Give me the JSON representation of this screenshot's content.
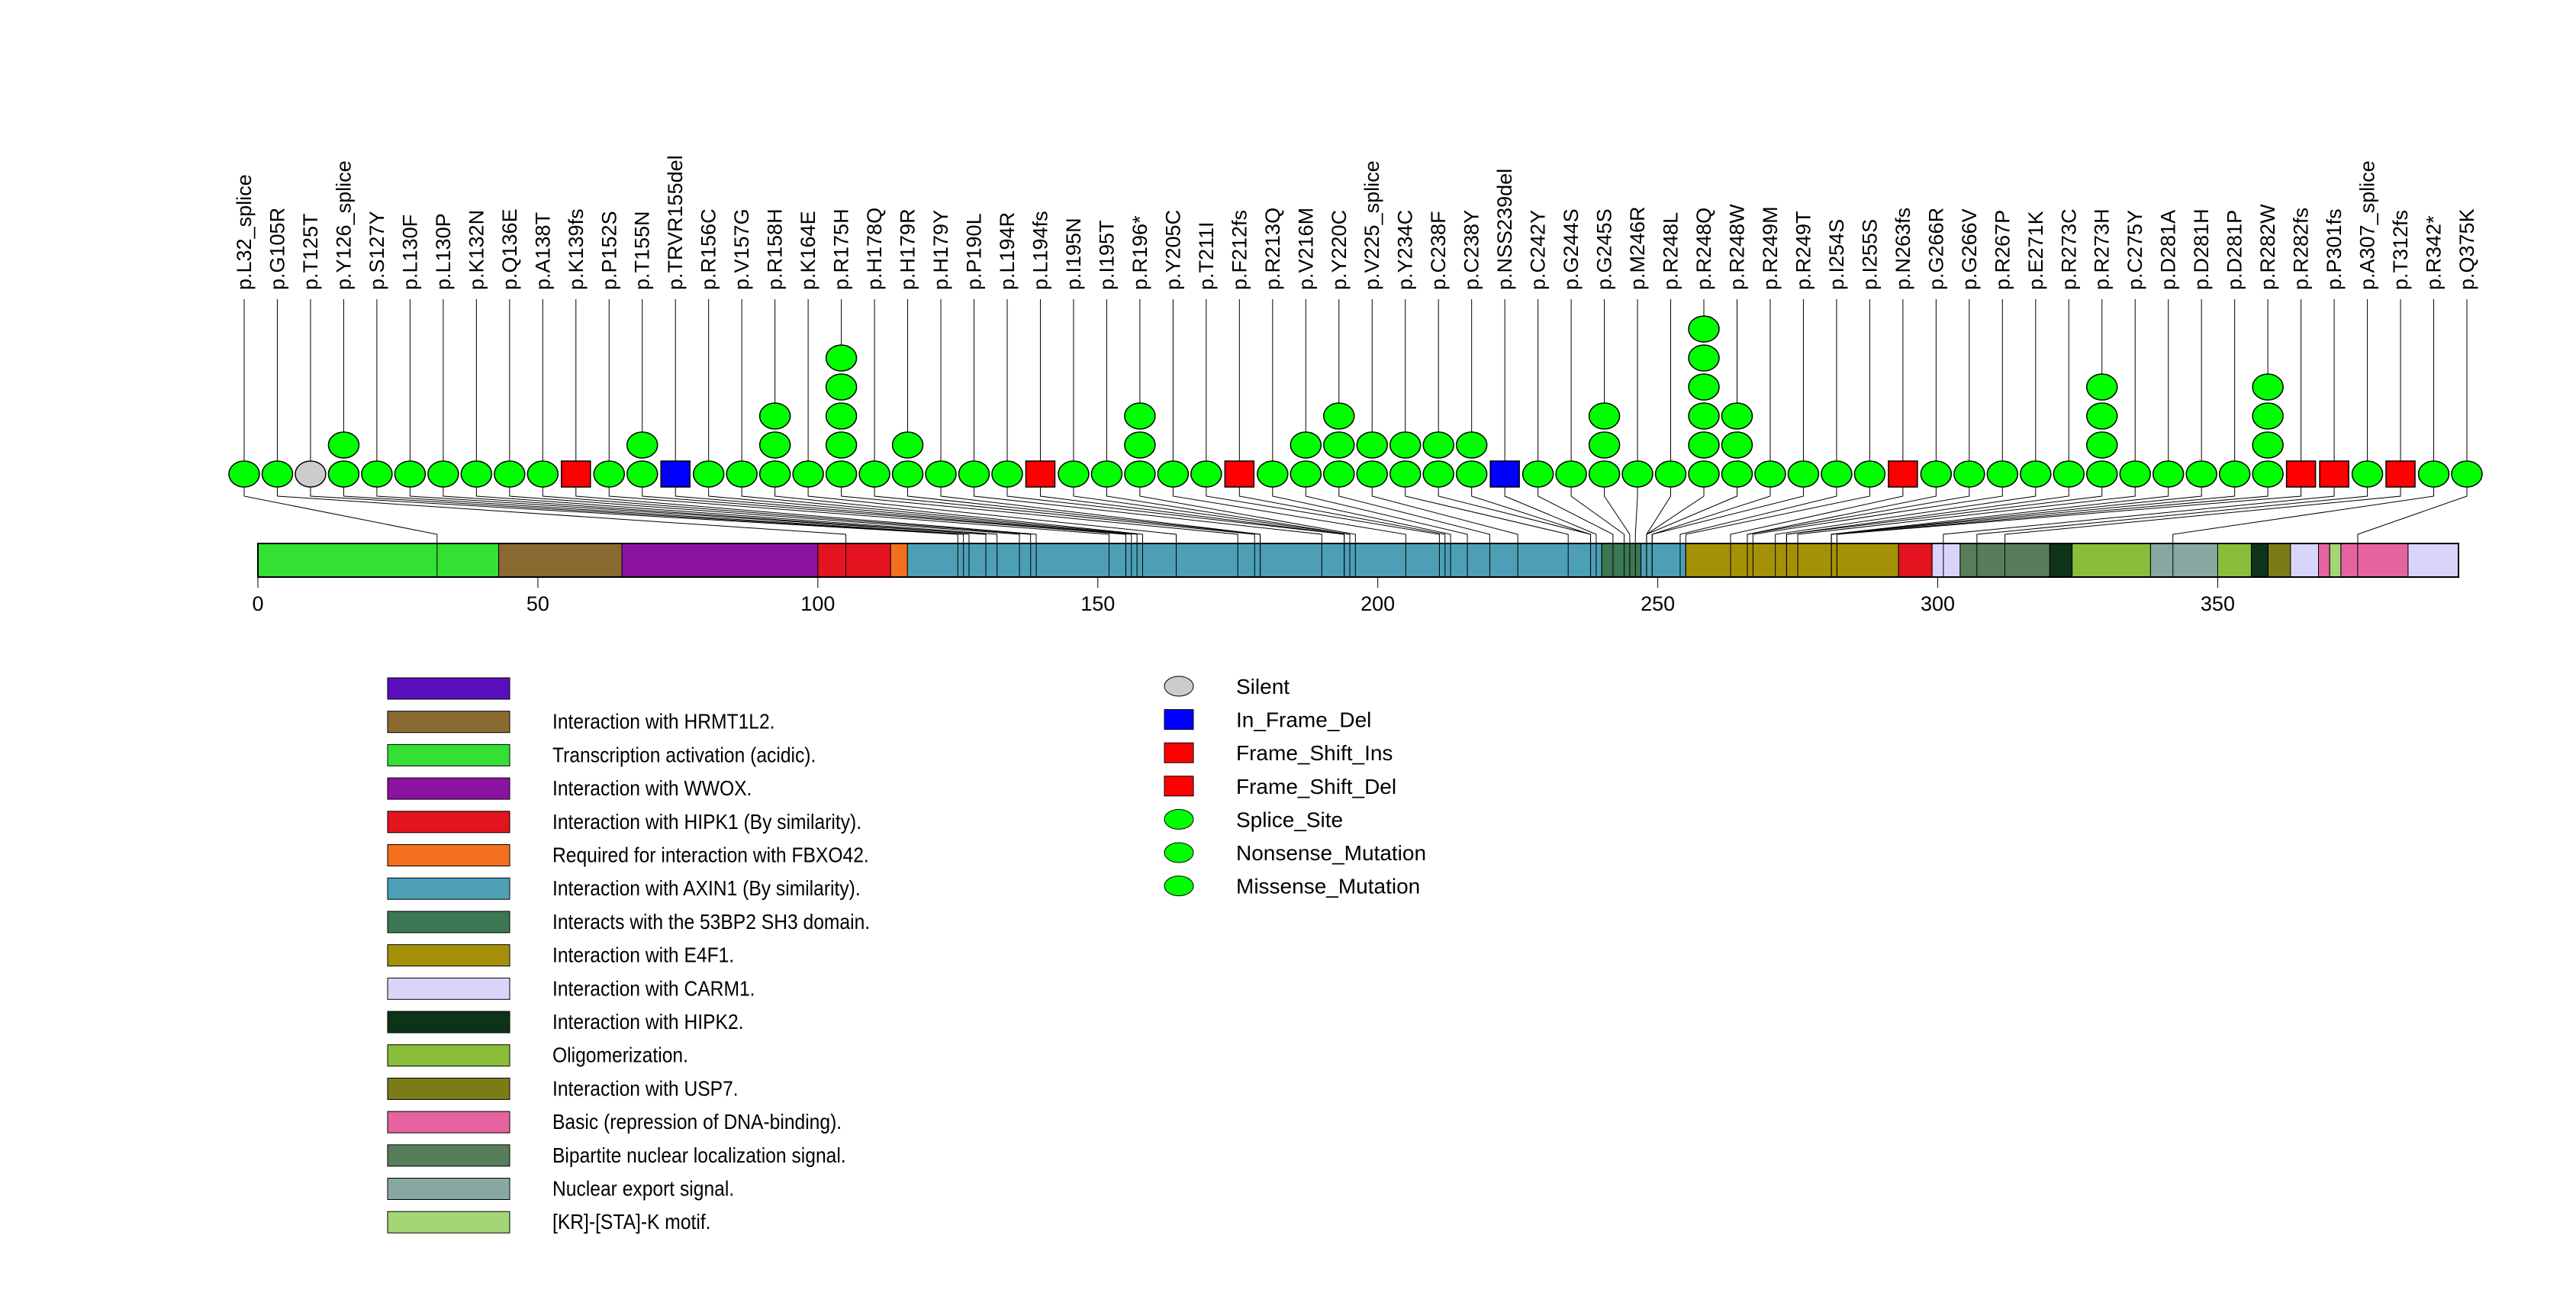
{
  "chart_data": {
    "type": "lollipop",
    "title": "",
    "xlabel": "",
    "ylabel": "",
    "protein_length": 393,
    "xlim": [
      0,
      393
    ],
    "x_ticks": [
      0,
      50,
      100,
      150,
      200,
      250,
      300,
      350
    ],
    "mutation_types": {
      "Silent": {
        "shape": "ellipse",
        "color": "#cccccc"
      },
      "In_Frame_Del": {
        "shape": "square",
        "color": "#0000ff"
      },
      "Frame_Shift_Ins": {
        "shape": "square",
        "color": "#ff0000"
      },
      "Frame_Shift_Del": {
        "shape": "square",
        "color": "#ff0000"
      },
      "Splice_Site": {
        "shape": "ellipse",
        "color": "#00ff00"
      },
      "Nonsense_Mutation": {
        "shape": "ellipse",
        "color": "#00ff00"
      },
      "Missense_Mutation": {
        "shape": "ellipse",
        "color": "#00ff00"
      }
    },
    "mutations": [
      {
        "label": "p.L32_splice",
        "pos": 32,
        "count": 1,
        "type": "Splice_Site"
      },
      {
        "label": "p.G105R",
        "pos": 105,
        "count": 1,
        "type": "Missense_Mutation"
      },
      {
        "label": "p.T125T",
        "pos": 125,
        "count": 1,
        "type": "Silent"
      },
      {
        "label": "p.Y126_splice",
        "pos": 126,
        "count": 2,
        "type": "Splice_Site"
      },
      {
        "label": "p.S127Y",
        "pos": 127,
        "count": 1,
        "type": "Missense_Mutation"
      },
      {
        "label": "p.L130F",
        "pos": 130,
        "count": 1,
        "type": "Missense_Mutation"
      },
      {
        "label": "p.L130P",
        "pos": 130,
        "count": 1,
        "type": "Missense_Mutation"
      },
      {
        "label": "p.K132N",
        "pos": 132,
        "count": 1,
        "type": "Missense_Mutation"
      },
      {
        "label": "p.Q136E",
        "pos": 136,
        "count": 1,
        "type": "Missense_Mutation"
      },
      {
        "label": "p.A138T",
        "pos": 138,
        "count": 1,
        "type": "Missense_Mutation"
      },
      {
        "label": "p.K139fs",
        "pos": 139,
        "count": 1,
        "type": "Frame_Shift_Del"
      },
      {
        "label": "p.P152S",
        "pos": 152,
        "count": 1,
        "type": "Missense_Mutation"
      },
      {
        "label": "p.T155N",
        "pos": 155,
        "count": 2,
        "type": "Missense_Mutation"
      },
      {
        "label": "p.TRVR155del",
        "pos": 155,
        "count": 1,
        "type": "In_Frame_Del"
      },
      {
        "label": "p.R156C",
        "pos": 156,
        "count": 1,
        "type": "Missense_Mutation"
      },
      {
        "label": "p.V157G",
        "pos": 157,
        "count": 1,
        "type": "Missense_Mutation"
      },
      {
        "label": "p.R158H",
        "pos": 158,
        "count": 3,
        "type": "Missense_Mutation"
      },
      {
        "label": "p.K164E",
        "pos": 164,
        "count": 1,
        "type": "Missense_Mutation"
      },
      {
        "label": "p.R175H",
        "pos": 175,
        "count": 5,
        "type": "Missense_Mutation"
      },
      {
        "label": "p.H178Q",
        "pos": 178,
        "count": 1,
        "type": "Missense_Mutation"
      },
      {
        "label": "p.H179R",
        "pos": 179,
        "count": 2,
        "type": "Missense_Mutation"
      },
      {
        "label": "p.H179Y",
        "pos": 179,
        "count": 1,
        "type": "Missense_Mutation"
      },
      {
        "label": "p.P190L",
        "pos": 190,
        "count": 1,
        "type": "Missense_Mutation"
      },
      {
        "label": "p.L194R",
        "pos": 194,
        "count": 1,
        "type": "Missense_Mutation"
      },
      {
        "label": "p.L194fs",
        "pos": 194,
        "count": 1,
        "type": "Frame_Shift_Del"
      },
      {
        "label": "p.I195N",
        "pos": 195,
        "count": 1,
        "type": "Missense_Mutation"
      },
      {
        "label": "p.I195T",
        "pos": 195,
        "count": 1,
        "type": "Missense_Mutation"
      },
      {
        "label": "p.R196*",
        "pos": 196,
        "count": 3,
        "type": "Nonsense_Mutation"
      },
      {
        "label": "p.Y205C",
        "pos": 205,
        "count": 1,
        "type": "Missense_Mutation"
      },
      {
        "label": "p.T211I",
        "pos": 211,
        "count": 1,
        "type": "Missense_Mutation"
      },
      {
        "label": "p.F212fs",
        "pos": 212,
        "count": 1,
        "type": "Frame_Shift_Del"
      },
      {
        "label": "p.R213Q",
        "pos": 213,
        "count": 1,
        "type": "Missense_Mutation"
      },
      {
        "label": "p.V216M",
        "pos": 216,
        "count": 2,
        "type": "Missense_Mutation"
      },
      {
        "label": "p.Y220C",
        "pos": 220,
        "count": 3,
        "type": "Missense_Mutation"
      },
      {
        "label": "p.V225_splice",
        "pos": 225,
        "count": 2,
        "type": "Splice_Site"
      },
      {
        "label": "p.Y234C",
        "pos": 234,
        "count": 2,
        "type": "Missense_Mutation"
      },
      {
        "label": "p.C238F",
        "pos": 238,
        "count": 2,
        "type": "Missense_Mutation"
      },
      {
        "label": "p.C238Y",
        "pos": 238,
        "count": 2,
        "type": "Missense_Mutation"
      },
      {
        "label": "p.NSS239del",
        "pos": 239,
        "count": 1,
        "type": "In_Frame_Del"
      },
      {
        "label": "p.C242Y",
        "pos": 242,
        "count": 1,
        "type": "Missense_Mutation"
      },
      {
        "label": "p.G244S",
        "pos": 244,
        "count": 1,
        "type": "Missense_Mutation"
      },
      {
        "label": "p.G245S",
        "pos": 245,
        "count": 3,
        "type": "Missense_Mutation"
      },
      {
        "label": "p.M246R",
        "pos": 246,
        "count": 1,
        "type": "Missense_Mutation"
      },
      {
        "label": "p.R248L",
        "pos": 248,
        "count": 1,
        "type": "Missense_Mutation"
      },
      {
        "label": "p.R248Q",
        "pos": 248,
        "count": 6,
        "type": "Missense_Mutation"
      },
      {
        "label": "p.R248W",
        "pos": 248,
        "count": 3,
        "type": "Missense_Mutation"
      },
      {
        "label": "p.R249M",
        "pos": 249,
        "count": 1,
        "type": "Missense_Mutation"
      },
      {
        "label": "p.R249T",
        "pos": 249,
        "count": 1,
        "type": "Missense_Mutation"
      },
      {
        "label": "p.I254S",
        "pos": 254,
        "count": 1,
        "type": "Missense_Mutation"
      },
      {
        "label": "p.I255S",
        "pos": 255,
        "count": 1,
        "type": "Missense_Mutation"
      },
      {
        "label": "p.N263fs",
        "pos": 263,
        "count": 1,
        "type": "Frame_Shift_Del"
      },
      {
        "label": "p.G266R",
        "pos": 266,
        "count": 1,
        "type": "Missense_Mutation"
      },
      {
        "label": "p.G266V",
        "pos": 266,
        "count": 1,
        "type": "Missense_Mutation"
      },
      {
        "label": "p.R267P",
        "pos": 267,
        "count": 1,
        "type": "Missense_Mutation"
      },
      {
        "label": "p.E271K",
        "pos": 271,
        "count": 1,
        "type": "Missense_Mutation"
      },
      {
        "label": "p.R273C",
        "pos": 273,
        "count": 1,
        "type": "Missense_Mutation"
      },
      {
        "label": "p.R273H",
        "pos": 273,
        "count": 4,
        "type": "Missense_Mutation"
      },
      {
        "label": "p.C275Y",
        "pos": 275,
        "count": 1,
        "type": "Missense_Mutation"
      },
      {
        "label": "p.D281A",
        "pos": 281,
        "count": 1,
        "type": "Missense_Mutation"
      },
      {
        "label": "p.D281H",
        "pos": 281,
        "count": 1,
        "type": "Missense_Mutation"
      },
      {
        "label": "p.D281P",
        "pos": 281,
        "count": 1,
        "type": "Missense_Mutation"
      },
      {
        "label": "p.R282W",
        "pos": 282,
        "count": 4,
        "type": "Missense_Mutation"
      },
      {
        "label": "p.R282fs",
        "pos": 282,
        "count": 1,
        "type": "Frame_Shift_Del"
      },
      {
        "label": "p.P301fs",
        "pos": 301,
        "count": 1,
        "type": "Frame_Shift_Del"
      },
      {
        "label": "p.A307_splice",
        "pos": 307,
        "count": 1,
        "type": "Splice_Site"
      },
      {
        "label": "p.T312fs",
        "pos": 312,
        "count": 1,
        "type": "Frame_Shift_Del"
      },
      {
        "label": "p.R342*",
        "pos": 342,
        "count": 1,
        "type": "Nonsense_Mutation"
      },
      {
        "label": "p.Q375K",
        "pos": 375,
        "count": 1,
        "type": "Missense_Mutation"
      }
    ],
    "domains": [
      {
        "name": "Transcription activation (acidic).",
        "start": 0,
        "end": 43,
        "color": "#33e033"
      },
      {
        "name": "Interaction with HRMT1L2.",
        "start": 43,
        "end": 65,
        "color": "#8b6a32"
      },
      {
        "name": "Interaction with WWOX.",
        "start": 65,
        "end": 100,
        "color": "#8b139f"
      },
      {
        "name": "Interaction with HIPK1 (By similarity).",
        "start": 100,
        "end": 113,
        "color": "#e3131f"
      },
      {
        "name": "Required for interaction with FBXO42.",
        "start": 113,
        "end": 116,
        "color": "#f5701e"
      },
      {
        "name": "Interaction with AXIN1 (By similarity).",
        "start": 116,
        "end": 240,
        "color": "#4c9fb5"
      },
      {
        "name": "Interacts with the 53BP2 SH3 domain.",
        "start": 240,
        "end": 247,
        "color": "#3c7753"
      },
      {
        "name": "Interaction with AXIN1 (By similarity).",
        "start": 247,
        "end": 255,
        "color": "#4c9fb5"
      },
      {
        "name": "Interaction with E4F1.",
        "start": 255,
        "end": 293,
        "color": "#a49107"
      },
      {
        "name": "Interaction with HIPK1 (By similarity).",
        "start": 293,
        "end": 299,
        "color": "#e3131f"
      },
      {
        "name": "Interaction with CARM1.",
        "start": 299,
        "end": 304,
        "color": "#d8d4fa"
      },
      {
        "name": "Bipartite nuclear localization signal.",
        "start": 304,
        "end": 320,
        "color": "#587d5b"
      },
      {
        "name": "Interaction with HIPK2.",
        "start": 320,
        "end": 324,
        "color": "#0d3318"
      },
      {
        "name": "Oligomerization.",
        "start": 324,
        "end": 338,
        "color": "#8abd3a"
      },
      {
        "name": "Nuclear export signal.",
        "start": 338,
        "end": 350,
        "color": "#88a7a1"
      },
      {
        "name": "Oligomerization.",
        "start": 350,
        "end": 356,
        "color": "#8abd3a"
      },
      {
        "name": "Interaction with HIPK2.",
        "start": 356,
        "end": 359,
        "color": "#0d3318"
      },
      {
        "name": "Interaction with USP7.",
        "start": 359,
        "end": 363,
        "color": "#7b7c18"
      },
      {
        "name": "Interaction with CARM1.",
        "start": 363,
        "end": 368,
        "color": "#d8d4fa"
      },
      {
        "name": "Basic (repression of DNA-binding).",
        "start": 368,
        "end": 370,
        "color": "#e5649f"
      },
      {
        "name": "[KR]-[STA]-K motif.",
        "start": 370,
        "end": 372,
        "color": "#a4d675"
      },
      {
        "name": "Basic (repression of DNA-binding).",
        "start": 372,
        "end": 384,
        "color": "#e5649f"
      },
      {
        "name": "Interaction with CARM1.",
        "start": 384,
        "end": 393,
        "color": "#d8d4fa"
      }
    ],
    "domain_legend": [
      {
        "label": "",
        "color": "#5a0fbd"
      },
      {
        "label": "Interaction with HRMT1L2.",
        "color": "#8b6a32"
      },
      {
        "label": "Transcription activation (acidic).",
        "color": "#33e033"
      },
      {
        "label": "Interaction with WWOX.",
        "color": "#8b139f"
      },
      {
        "label": "Interaction with HIPK1 (By similarity).",
        "color": "#e3131f"
      },
      {
        "label": "Required for interaction with FBXO42.",
        "color": "#f5701e"
      },
      {
        "label": "Interaction with AXIN1 (By similarity).",
        "color": "#4c9fb5"
      },
      {
        "label": "Interacts with the 53BP2 SH3 domain.",
        "color": "#3c7753"
      },
      {
        "label": "Interaction with E4F1.",
        "color": "#a49107"
      },
      {
        "label": "Interaction with CARM1.",
        "color": "#d8d4fa"
      },
      {
        "label": "Interaction with HIPK2.",
        "color": "#0d3318"
      },
      {
        "label": "Oligomerization.",
        "color": "#8abd3a"
      },
      {
        "label": "Interaction with USP7.",
        "color": "#7b7c18"
      },
      {
        "label": "Basic (repression of DNA-binding).",
        "color": "#e5649f"
      },
      {
        "label": "Bipartite nuclear localization signal.",
        "color": "#587d5b"
      },
      {
        "label": "Nuclear export signal.",
        "color": "#88a7a1"
      },
      {
        "label": "[KR]-[STA]-K motif.",
        "color": "#a4d675"
      }
    ],
    "type_legend": [
      {
        "label": "Silent",
        "shape": "ellipse",
        "color": "#cccccc"
      },
      {
        "label": "In_Frame_Del",
        "shape": "square",
        "color": "#0000ff"
      },
      {
        "label": "Frame_Shift_Ins",
        "shape": "square",
        "color": "#ff0000"
      },
      {
        "label": "Frame_Shift_Del",
        "shape": "square",
        "color": "#ff0000"
      },
      {
        "label": "Splice_Site",
        "shape": "ellipse",
        "color": "#00ff00"
      },
      {
        "label": "Nonsense_Mutation",
        "shape": "ellipse",
        "color": "#00ff00"
      },
      {
        "label": "Missense_Mutation",
        "shape": "ellipse",
        "color": "#00ff00"
      }
    ],
    "grid": false,
    "legend_placement": "bottom-left"
  }
}
